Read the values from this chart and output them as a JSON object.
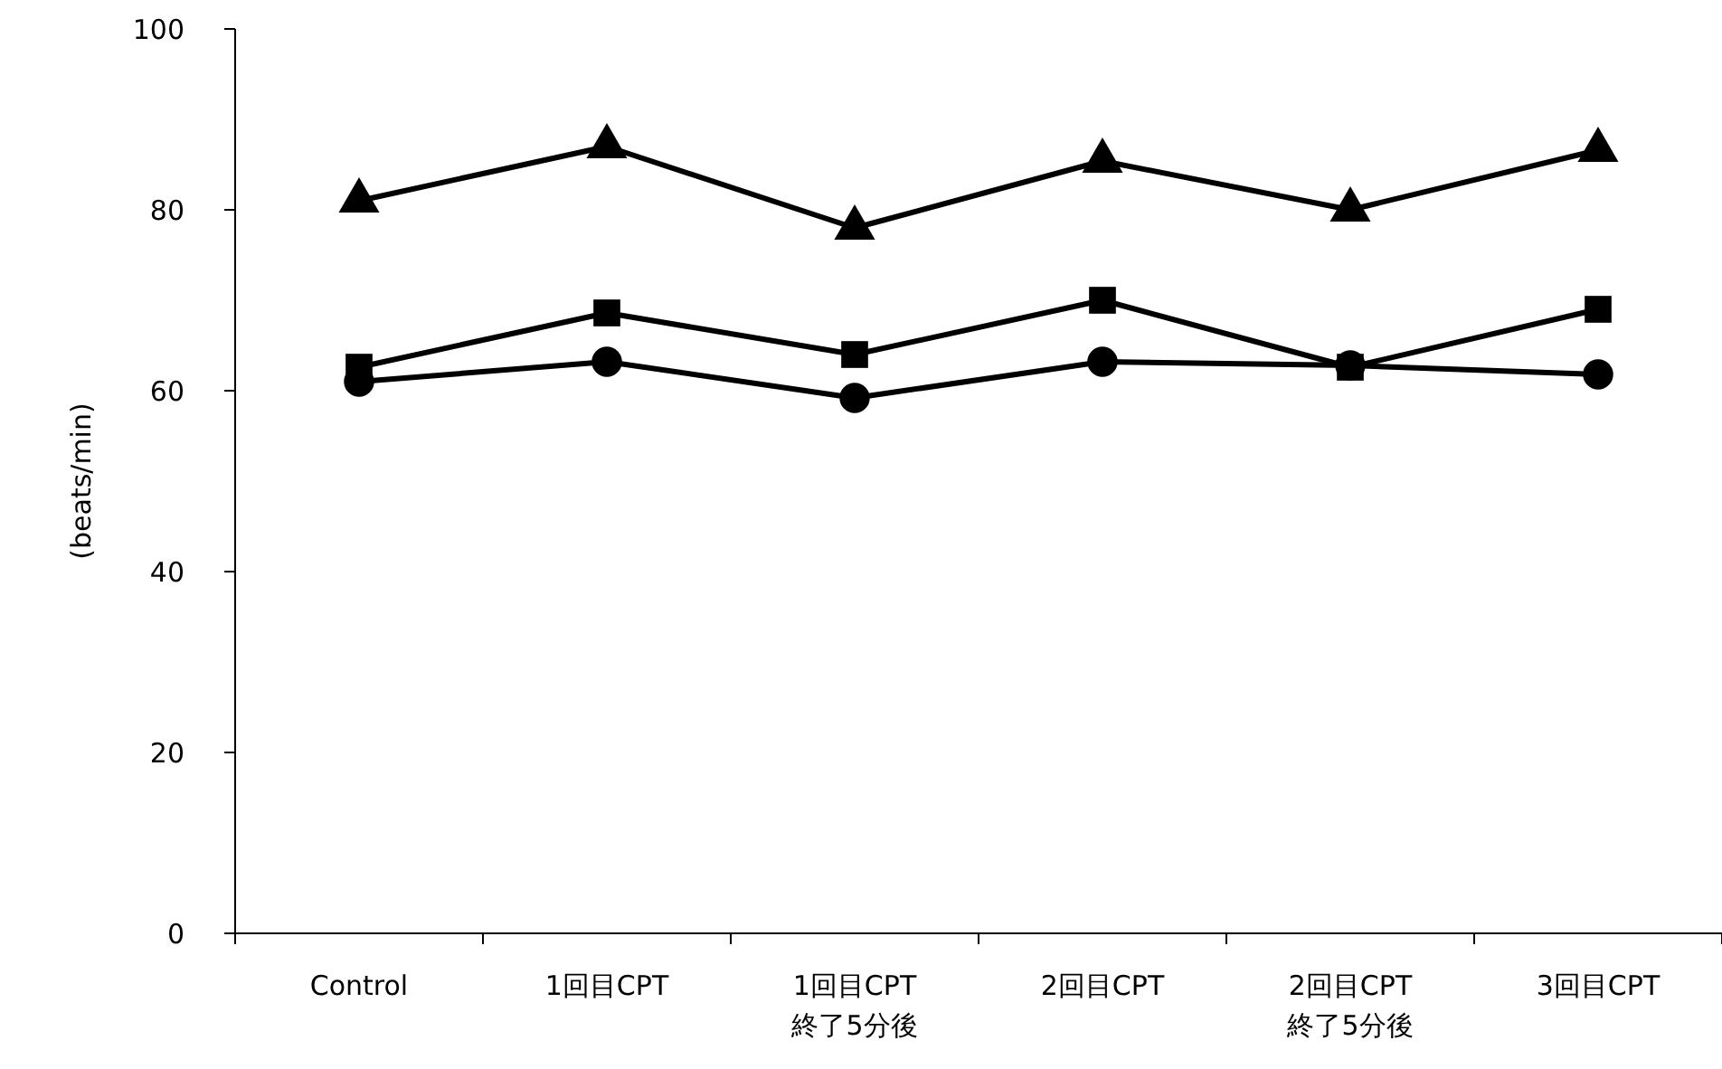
{
  "chart_data": {
    "type": "line",
    "ylabel": "(beats/min)",
    "categories": [
      "Control",
      "1回目CPT",
      "1回目CPT\n終了5分後",
      "2回目CPT",
      "2回目CPT\n終了5分後",
      "3回目CPT"
    ],
    "ylim": [
      0,
      100
    ],
    "yticks": [
      0,
      20,
      40,
      60,
      80,
      100
    ],
    "grid": false,
    "line_style": "solid",
    "series": [
      {
        "color": "#000000",
        "marker": "triangle",
        "values": [
          81,
          87,
          78,
          85.4,
          80,
          86.6
        ]
      },
      {
        "color": "#000000",
        "marker": "square",
        "values": [
          62.6,
          68.6,
          64,
          70,
          62.6,
          69
        ]
      },
      {
        "color": "#000000",
        "marker": "circle",
        "values": [
          61,
          63.2,
          59.2,
          63.2,
          62.8,
          61.8
        ]
      }
    ]
  }
}
